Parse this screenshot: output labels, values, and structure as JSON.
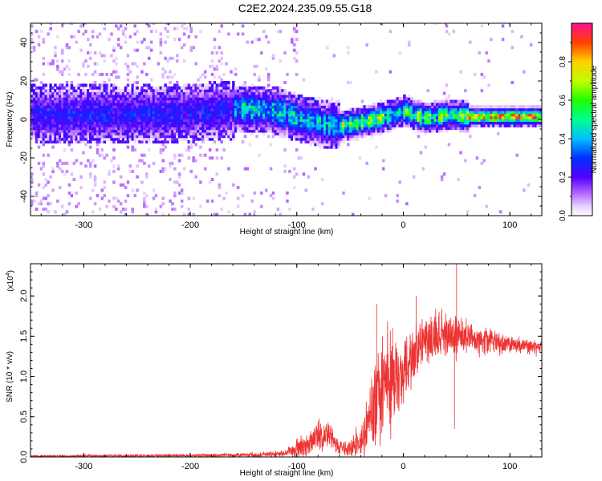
{
  "title": "C2E2.2024.235.09.55.G18",
  "chart_data": [
    {
      "type": "heatmap",
      "xlabel": "Height of straight line (km)",
      "ylabel": "Frequency (Hz)",
      "xlim": [
        -350,
        130
      ],
      "ylim": [
        -50,
        50
      ],
      "xticks": [
        -300,
        -200,
        -100,
        0,
        100
      ],
      "yticks": [
        -40,
        -20,
        0,
        20,
        40
      ],
      "colorbar": {
        "label": "Normalized spectral amplitude",
        "range": [
          0,
          1
        ],
        "ticks": [
          0.0,
          0.2,
          0.4,
          0.6,
          0.8
        ]
      },
      "ridge": [
        {
          "x": -350,
          "y": 2
        },
        {
          "x": -300,
          "y": 2
        },
        {
          "x": -250,
          "y": 2
        },
        {
          "x": -200,
          "y": 3
        },
        {
          "x": -150,
          "y": 5
        },
        {
          "x": -120,
          "y": 4
        },
        {
          "x": -100,
          "y": 0
        },
        {
          "x": -75,
          "y": -3
        },
        {
          "x": -60,
          "y": -4
        },
        {
          "x": -40,
          "y": -2
        },
        {
          "x": -25,
          "y": 0
        },
        {
          "x": -10,
          "y": 2
        },
        {
          "x": 0,
          "y": 4
        },
        {
          "x": 10,
          "y": 2
        },
        {
          "x": 20,
          "y": 0
        },
        {
          "x": 40,
          "y": 2
        },
        {
          "x": 60,
          "y": 1
        },
        {
          "x": 130,
          "y": 1
        }
      ]
    },
    {
      "type": "line",
      "xlabel": "Height of straight line (km)",
      "ylabel": "SNR (10 * v/v)",
      "yscale_note": "(x10",
      "yscale_exp": "4",
      "xlim": [
        -350,
        130
      ],
      "ylim": [
        0,
        2.4
      ],
      "xticks": [
        -300,
        -200,
        -100,
        0,
        100
      ],
      "yticks": [
        "0.0",
        "0.5",
        "1.0",
        "1.5",
        "2.0"
      ],
      "color": "#ee3333",
      "envelope": {
        "x": [
          -350,
          -180,
          -130,
          -110,
          -100,
          -90,
          -80,
          -75,
          -70,
          -65,
          -60,
          -50,
          -40,
          -35,
          -30,
          -25,
          -20,
          -15,
          -10,
          -5,
          0,
          5,
          10,
          15,
          20,
          25,
          30,
          40,
          50,
          60,
          70,
          80,
          100,
          130
        ],
        "mid": [
          0.01,
          0.02,
          0.03,
          0.05,
          0.1,
          0.15,
          0.25,
          0.3,
          0.28,
          0.2,
          0.1,
          0.1,
          0.2,
          0.35,
          0.5,
          0.7,
          0.85,
          0.9,
          0.95,
          1.0,
          1.1,
          1.2,
          1.3,
          1.4,
          1.45,
          1.5,
          1.5,
          1.5,
          1.55,
          1.5,
          1.45,
          1.45,
          1.4,
          1.35
        ],
        "amp": [
          0.01,
          0.02,
          0.03,
          0.04,
          0.1,
          0.12,
          0.18,
          0.2,
          0.2,
          0.15,
          0.1,
          0.1,
          0.2,
          0.3,
          0.4,
          0.5,
          0.6,
          0.6,
          0.55,
          0.5,
          0.45,
          0.4,
          0.35,
          0.3,
          0.3,
          0.3,
          0.25,
          0.25,
          0.25,
          0.2,
          0.15,
          0.15,
          0.1,
          0.08
        ]
      },
      "spikes": [
        {
          "x": -25,
          "y": 1.9
        },
        {
          "x": -10,
          "y": 1.6
        },
        {
          "x": 12,
          "y": 2.0
        },
        {
          "x": 50,
          "y": 2.4
        },
        {
          "x": 48,
          "y": 0.35
        }
      ]
    }
  ]
}
